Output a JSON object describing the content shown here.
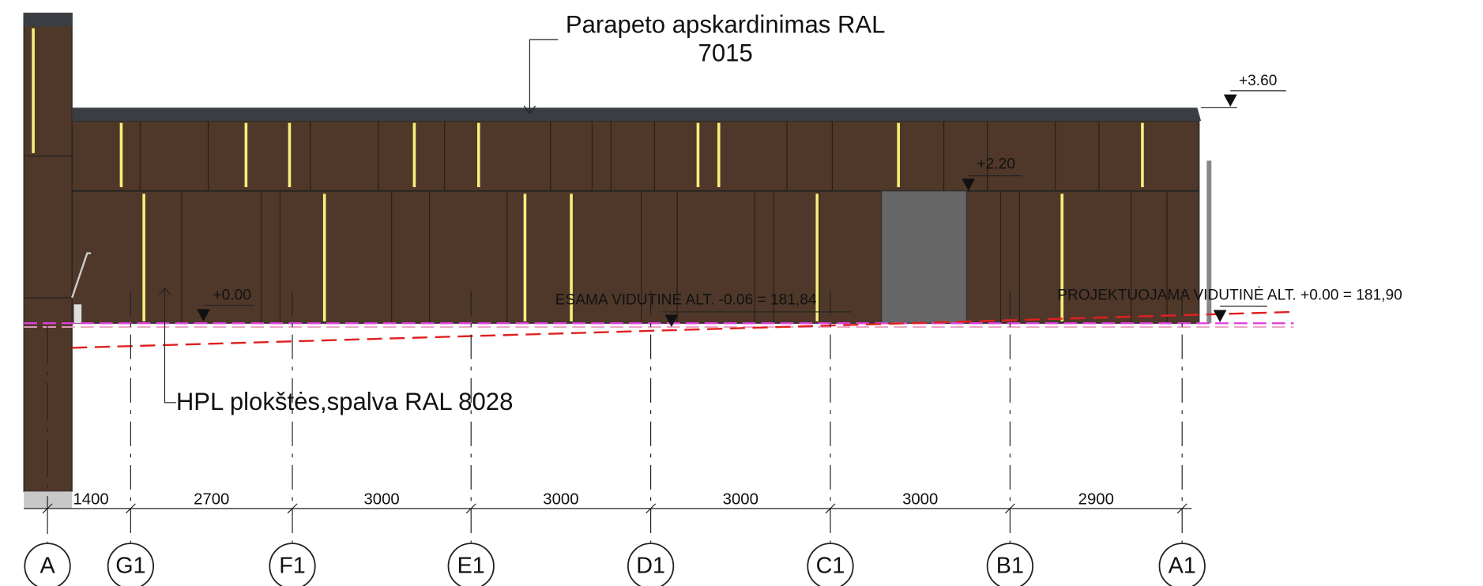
{
  "annotations": {
    "parapet": [
      "Parapeto apskardinimas RAL",
      "7015"
    ],
    "panels": "HPL plokštės,spalva RAL 8028",
    "existing_alt": "ESAMA VIDUTINĖ ALT. -0.06 = 181,84",
    "projected_alt": "PROJEKTUOJAMA VIDUTINĖ ALT. +0.00 = 181,90"
  },
  "levels": [
    "+3.60",
    "+2.20",
    "+0.00"
  ],
  "dimensions": [
    1400,
    2700,
    3000,
    3000,
    3000,
    3000,
    2900
  ],
  "axes": [
    "A",
    "G1",
    "F1",
    "E1",
    "D1",
    "C1",
    "B1",
    "A1"
  ]
}
